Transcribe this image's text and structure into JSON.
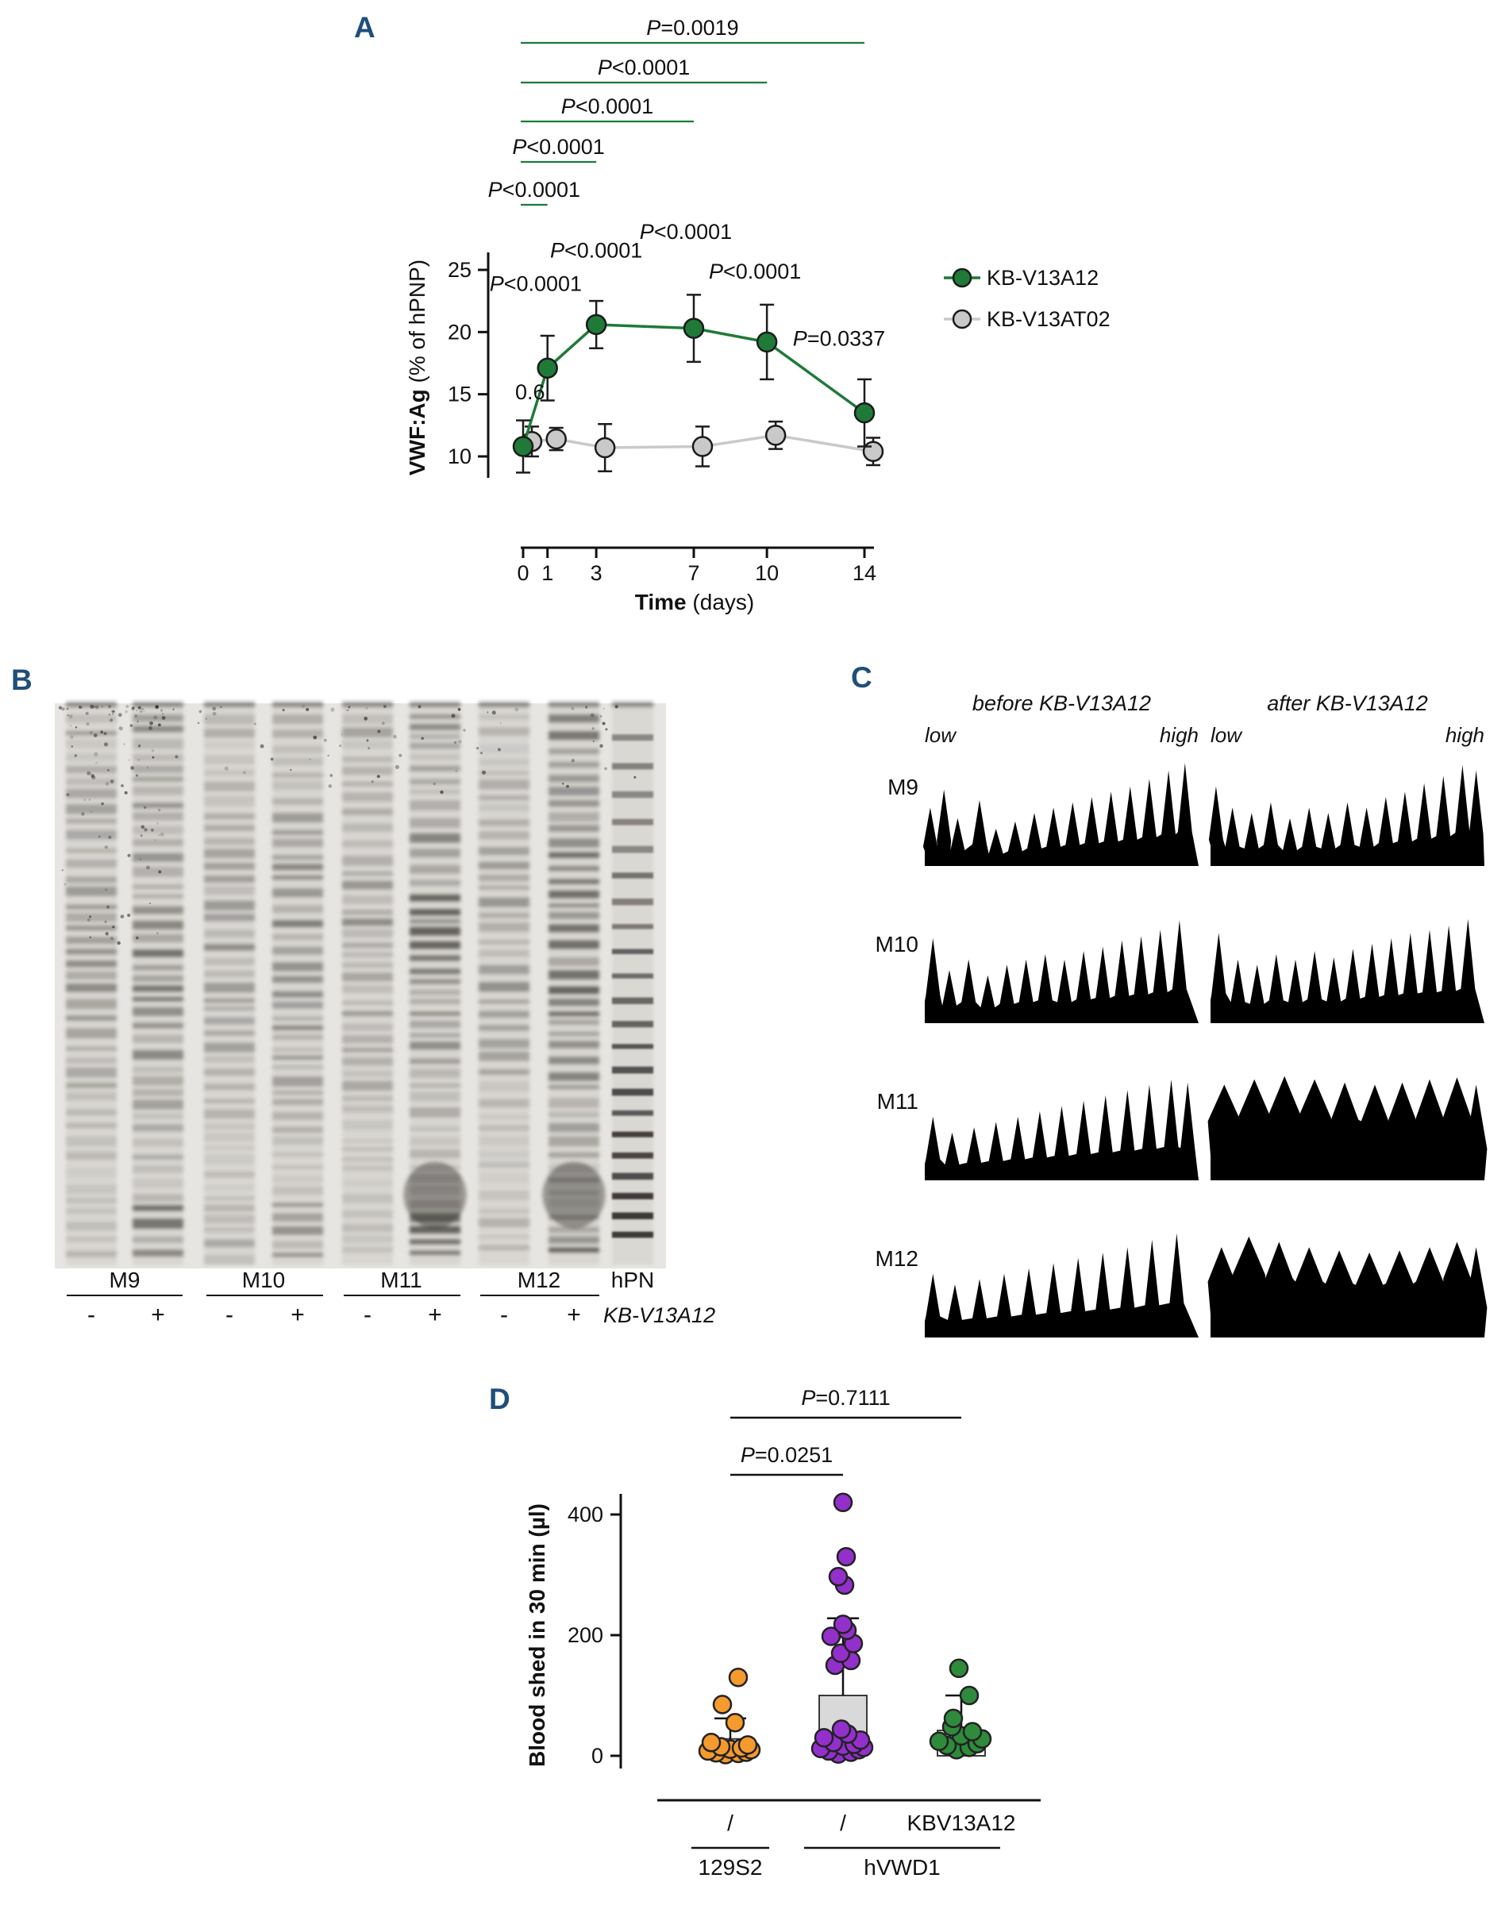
{
  "figure": {
    "background": "#ffffff",
    "accent_green": "#1a7a3a",
    "panel_label_color": "#1f4e7a"
  },
  "panel_labels": {
    "a": "A",
    "b": "B",
    "c": "C",
    "d": "D"
  },
  "chart_data": [
    {
      "panel": "A",
      "type": "line",
      "xlabel": {
        "bold": "Time",
        "rest": " (days)"
      },
      "ylabel": {
        "bold": "VWF:Ag",
        "rest": " (% of hPNP)"
      },
      "x": [
        0,
        1,
        3,
        7,
        10,
        14
      ],
      "yticks": [
        10,
        15,
        20,
        25
      ],
      "ylim": [
        8,
        27
      ],
      "series": [
        {
          "name": "KB-V13A12",
          "color": "#1f7a38",
          "values": [
            10.8,
            17.1,
            20.6,
            20.3,
            19.2,
            13.5
          ],
          "err": [
            2.1,
            2.6,
            1.9,
            2.7,
            3.0,
            2.7
          ]
        },
        {
          "name": "KB-V13AT02",
          "color": "#c9c9c9",
          "values": [
            11.2,
            11.4,
            10.7,
            10.8,
            11.7,
            10.4
          ],
          "err": [
            1.2,
            0.9,
            1.9,
            1.6,
            1.1,
            1.1
          ]
        }
      ],
      "brackets": [
        {
          "x1": 0,
          "x2": 14,
          "text": "P=0.0019"
        },
        {
          "x1": 0,
          "x2": 10,
          "text": "P<0.0001"
        },
        {
          "x1": 0,
          "x2": 7,
          "text": "P<0.0001"
        },
        {
          "x1": 0,
          "x2": 3,
          "text": "P<0.0001"
        },
        {
          "x1": 0,
          "x2": 1,
          "text": "P<0.0001"
        }
      ],
      "annotations": [
        {
          "day": 1,
          "val": 23.3,
          "text": "P<0.0001",
          "anchor": "start",
          "dx": -73
        },
        {
          "day": 3,
          "val": 26.0,
          "text": "P<0.0001",
          "anchor": "middle",
          "dx": 0
        },
        {
          "day": 7,
          "val": 27.5,
          "text": "P<0.0001",
          "anchor": "middle",
          "dx": -10
        },
        {
          "day": 10,
          "val": 24.3,
          "text": "P<0.0001",
          "anchor": "middle",
          "dx": -15
        },
        {
          "day": 14,
          "val": 18.9,
          "text": "P=0.0337",
          "anchor": "middle",
          "dx": -32
        },
        {
          "day": 0,
          "val": 14.6,
          "text": "0.6",
          "anchor": "start",
          "dx": -10
        }
      ]
    },
    {
      "panel": "C",
      "type": "area",
      "col_headers": [
        "before KB-V13A12",
        "after KB-V13A12"
      ],
      "axis_low": "low",
      "axis_high": "high",
      "rows": [
        {
          "label": "M9",
          "before": [
            [
              0.02,
              0.55
            ],
            [
              0.07,
              0.72
            ],
            [
              0.12,
              0.45
            ],
            [
              0.2,
              0.62
            ],
            [
              0.26,
              0.35
            ],
            [
              0.33,
              0.42
            ],
            [
              0.4,
              0.5
            ],
            [
              0.47,
              0.55
            ],
            [
              0.54,
              0.6
            ],
            [
              0.61,
              0.65
            ],
            [
              0.68,
              0.7
            ],
            [
              0.75,
              0.75
            ],
            [
              0.82,
              0.82
            ],
            [
              0.89,
              0.9
            ],
            [
              0.95,
              0.97
            ]
          ],
          "after": [
            [
              0.02,
              0.75
            ],
            [
              0.08,
              0.55
            ],
            [
              0.15,
              0.5
            ],
            [
              0.22,
              0.6
            ],
            [
              0.29,
              0.45
            ],
            [
              0.36,
              0.55
            ],
            [
              0.43,
              0.5
            ],
            [
              0.5,
              0.6
            ],
            [
              0.57,
              0.55
            ],
            [
              0.64,
              0.65
            ],
            [
              0.71,
              0.7
            ],
            [
              0.78,
              0.78
            ],
            [
              0.85,
              0.85
            ],
            [
              0.92,
              0.95
            ],
            [
              0.97,
              0.9
            ]
          ]
        },
        {
          "label": "M10",
          "before": [
            [
              0.03,
              0.8
            ],
            [
              0.09,
              0.5
            ],
            [
              0.16,
              0.6
            ],
            [
              0.23,
              0.45
            ],
            [
              0.3,
              0.55
            ],
            [
              0.37,
              0.6
            ],
            [
              0.44,
              0.65
            ],
            [
              0.51,
              0.6
            ],
            [
              0.58,
              0.68
            ],
            [
              0.65,
              0.72
            ],
            [
              0.72,
              0.78
            ],
            [
              0.79,
              0.82
            ],
            [
              0.86,
              0.88
            ],
            [
              0.93,
              0.97
            ]
          ],
          "after": [
            [
              0.03,
              0.85
            ],
            [
              0.1,
              0.6
            ],
            [
              0.17,
              0.55
            ],
            [
              0.24,
              0.65
            ],
            [
              0.31,
              0.6
            ],
            [
              0.38,
              0.68
            ],
            [
              0.45,
              0.62
            ],
            [
              0.52,
              0.7
            ],
            [
              0.59,
              0.75
            ],
            [
              0.66,
              0.8
            ],
            [
              0.73,
              0.85
            ],
            [
              0.8,
              0.88
            ],
            [
              0.87,
              0.92
            ],
            [
              0.94,
              0.98
            ]
          ]
        },
        {
          "label": "M11",
          "before": [
            [
              0.03,
              0.6
            ],
            [
              0.1,
              0.45
            ],
            [
              0.18,
              0.5
            ],
            [
              0.26,
              0.55
            ],
            [
              0.34,
              0.6
            ],
            [
              0.42,
              0.65
            ],
            [
              0.5,
              0.7
            ],
            [
              0.58,
              0.75
            ],
            [
              0.66,
              0.8
            ],
            [
              0.74,
              0.85
            ],
            [
              0.82,
              0.9
            ],
            [
              0.9,
              0.95
            ],
            [
              0.96,
              0.92
            ]
          ],
          "after": [
            [
              0.05,
              0.9,
              0.06
            ],
            [
              0.16,
              0.95,
              0.06
            ],
            [
              0.27,
              0.98,
              0.06
            ],
            [
              0.38,
              0.95,
              0.06
            ],
            [
              0.49,
              0.92,
              0.05
            ],
            [
              0.6,
              0.9,
              0.05
            ],
            [
              0.7,
              0.92,
              0.05
            ],
            [
              0.8,
              0.95,
              0.05
            ],
            [
              0.9,
              0.97,
              0.05
            ],
            [
              0.97,
              0.9,
              0.04
            ]
          ]
        },
        {
          "label": "M12",
          "before": [
            [
              0.03,
              0.6
            ],
            [
              0.11,
              0.5
            ],
            [
              0.2,
              0.55
            ],
            [
              0.29,
              0.6
            ],
            [
              0.38,
              0.65
            ],
            [
              0.47,
              0.7
            ],
            [
              0.56,
              0.75
            ],
            [
              0.65,
              0.8
            ],
            [
              0.74,
              0.85
            ],
            [
              0.83,
              0.92
            ],
            [
              0.92,
              0.98
            ]
          ],
          "after": [
            [
              0.04,
              0.85,
              0.05
            ],
            [
              0.14,
              0.95,
              0.06
            ],
            [
              0.25,
              0.9,
              0.05
            ],
            [
              0.36,
              0.85,
              0.05
            ],
            [
              0.47,
              0.82,
              0.05
            ],
            [
              0.58,
              0.8,
              0.05
            ],
            [
              0.69,
              0.82,
              0.05
            ],
            [
              0.8,
              0.85,
              0.05
            ],
            [
              0.9,
              0.9,
              0.05
            ],
            [
              0.97,
              0.85,
              0.04
            ]
          ]
        }
      ]
    },
    {
      "panel": "D",
      "type": "scatter",
      "ylabel": "Blood shed in 30 min (µl)",
      "yticks": [
        0,
        200,
        400
      ],
      "ylim": [
        0,
        450
      ],
      "groups": [
        {
          "label": "/",
          "strain": "129S2",
          "color": "#f59a2d",
          "points": [
            2,
            4,
            5,
            6,
            8,
            10,
            11,
            13,
            15,
            18,
            22,
            55,
            85,
            130
          ],
          "bar": 28,
          "whisker": 62
        },
        {
          "label": "/",
          "strain": "hVWD1",
          "color": "#9330cc",
          "bar_fill": "#d9d9d9",
          "points": [
            3,
            6,
            8,
            10,
            12,
            14,
            16,
            19,
            22,
            26,
            30,
            36,
            44,
            150,
            158,
            170,
            186,
            198,
            208,
            218,
            283,
            297,
            330,
            420
          ],
          "bar": 100,
          "whisker": 228
        },
        {
          "label": "KBV13A12",
          "strain": "hVWD1",
          "color": "#2e8b3c",
          "points": [
            10,
            14,
            17,
            20,
            24,
            28,
            33,
            40,
            48,
            62,
            100,
            145
          ],
          "bar": 42,
          "whisker": 100
        }
      ],
      "strain_spans": [
        {
          "label": "129S2",
          "from": 0,
          "to": 0
        },
        {
          "label": "hVWD1",
          "from": 1,
          "to": 2
        }
      ],
      "pvalues": [
        {
          "g1": 0,
          "g2": 2,
          "text": "P=0.7111"
        },
        {
          "g1": 0,
          "g2": 1,
          "text": "P=0.0251"
        }
      ]
    }
  ],
  "gel": {
    "lane_groups": [
      "M9",
      "M10",
      "M11",
      "M12"
    ],
    "reference_lane": "hPN",
    "treatments": [
      "-",
      "+",
      "-",
      "+",
      "-",
      "+",
      "-",
      "+"
    ],
    "treatment_label": "KB-V13A12"
  }
}
